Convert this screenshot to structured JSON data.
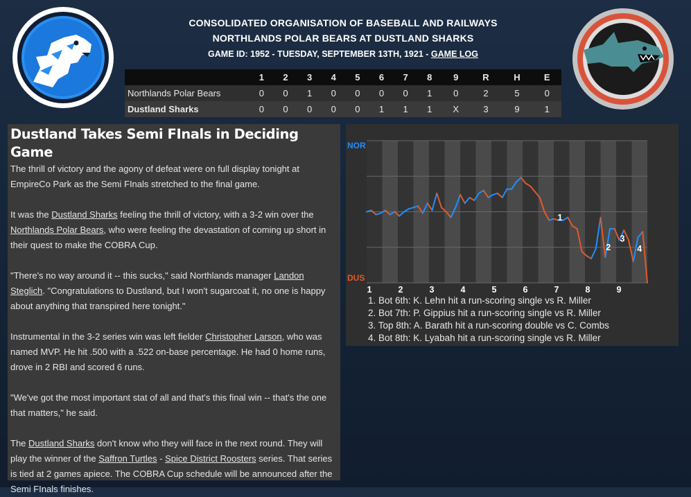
{
  "header": {
    "league": "CONSOLIDATED ORGANISATION OF BASEBALL AND RAILWAYS",
    "matchup": "NORTHLANDS POLAR BEARS AT DUSTLAND SHARKS",
    "game_info": "GAME ID: 1952 - TUESDAY, SEPTEMBER 13TH, 1921 -",
    "game_log_label": "GAME LOG"
  },
  "logos": {
    "away_icon": "polar-bear-logo",
    "home_icon": "shark-logo"
  },
  "boxscore": {
    "columns": [
      "1",
      "2",
      "3",
      "4",
      "5",
      "6",
      "7",
      "8",
      "9",
      "R",
      "H",
      "E"
    ],
    "rows": [
      {
        "team": "Northlands Polar Bears",
        "cells": [
          "0",
          "0",
          "1",
          "0",
          "0",
          "0",
          "0",
          "1",
          "0",
          "2",
          "5",
          "0"
        ]
      },
      {
        "team": "Dustland Sharks",
        "cells": [
          "0",
          "0",
          "0",
          "0",
          "0",
          "1",
          "1",
          "1",
          "X",
          "3",
          "9",
          "1"
        ]
      }
    ]
  },
  "story": {
    "headline": "Dustland Takes Semi FInals in Deciding Game",
    "p1": "The thrill of victory and the agony of defeat were on full display tonight at EmpireCo Park as the Semi FInals stretched to the final game.",
    "p2a": "It was the ",
    "p2_link1": "Dustland Sharks",
    "p2b": " feeling the thrill of victory, with a 3-2 win over the ",
    "p2_link2": "Northlands Polar Bears",
    "p2c": ", who were feeling the devastation of coming up short in their quest to make the COBRA Cup.",
    "p3a": "\"There's no way around it -- this sucks,\" said Northlands manager ",
    "p3_link": "Landon Steglich",
    "p3b": ". \"Congratulations to Dustland, but I won't sugarcoat it, no one is happy about anything that transpired here tonight.\"",
    "p4a": "Instrumental in the 3-2 series win was left fielder ",
    "p4_link": "Christopher Larson",
    "p4b": ", who was named MVP. He hit .500 with a .522 on-base percentage. He had 0 home runs, drove in 2 RBI and scored 6 runs.",
    "p5": "\"We've got the most important stat of all and that's this final win -- that's the one that matters,\" he said.",
    "p6a": "The ",
    "p6_link1": "Dustland Sharks",
    "p6b": " don't know who they will face in the next round. They will play the winner of the ",
    "p6_link2": "Saffron Turtles",
    "p6c": " - ",
    "p6_link3": "Spice District Roosters",
    "p6d": " series. That series is tied at 2 games apiece. The COBRA Cup schedule will be announced after the Semi FInals finishes."
  },
  "chart_data": {
    "type": "line",
    "title": "",
    "top_label": "NOR",
    "bottom_label": "DUS",
    "x_tick_labels": [
      "1",
      "2",
      "3",
      "4",
      "5",
      "6",
      "7",
      "8",
      "9"
    ],
    "y_range": [
      0,
      1
    ],
    "series": [
      {
        "values": [
          0.5,
          0.51,
          0.48,
          0.49,
          0.51,
          0.48,
          0.5,
          0.47,
          0.5,
          0.52,
          0.53,
          0.54,
          0.49,
          0.56,
          0.51,
          0.63,
          0.53,
          0.5,
          0.46,
          0.53,
          0.62,
          0.56,
          0.6,
          0.58,
          0.63,
          0.65,
          0.6,
          0.62,
          0.63,
          0.6,
          0.66,
          0.66,
          0.71,
          0.74,
          0.7,
          0.68,
          0.64,
          0.6,
          0.5,
          0.44,
          0.45,
          0.44,
          0.44,
          0.46,
          0.4,
          0.38,
          0.22,
          0.19,
          0.17,
          0.24,
          0.46,
          0.18,
          0.38,
          0.38,
          0.3,
          0.37,
          0.3,
          0.15,
          0.32,
          0.36,
          0
        ]
      }
    ],
    "segment_colors": {
      "nor": "#1e90ff",
      "dus": "#e05a2b"
    },
    "annotations": [
      {
        "label": "1",
        "x": 6.2,
        "y": 0.44
      },
      {
        "label": "2",
        "x": 7.75,
        "y": 0.23
      },
      {
        "label": "3",
        "x": 8.2,
        "y": 0.29
      },
      {
        "label": "4",
        "x": 8.75,
        "y": 0.22
      }
    ],
    "events": [
      "1. Bot 6th: K. Lehn hit a run-scoring single vs R. Miller",
      "2. Bot 7th: P. Gippius hit a run-scoring single vs R. Miller",
      "3. Top 8th: A. Barath hit a run-scoring double vs C. Combs",
      "4. Bot 8th: K. Lyabah hit a run-scoring single vs R. Miller"
    ]
  }
}
